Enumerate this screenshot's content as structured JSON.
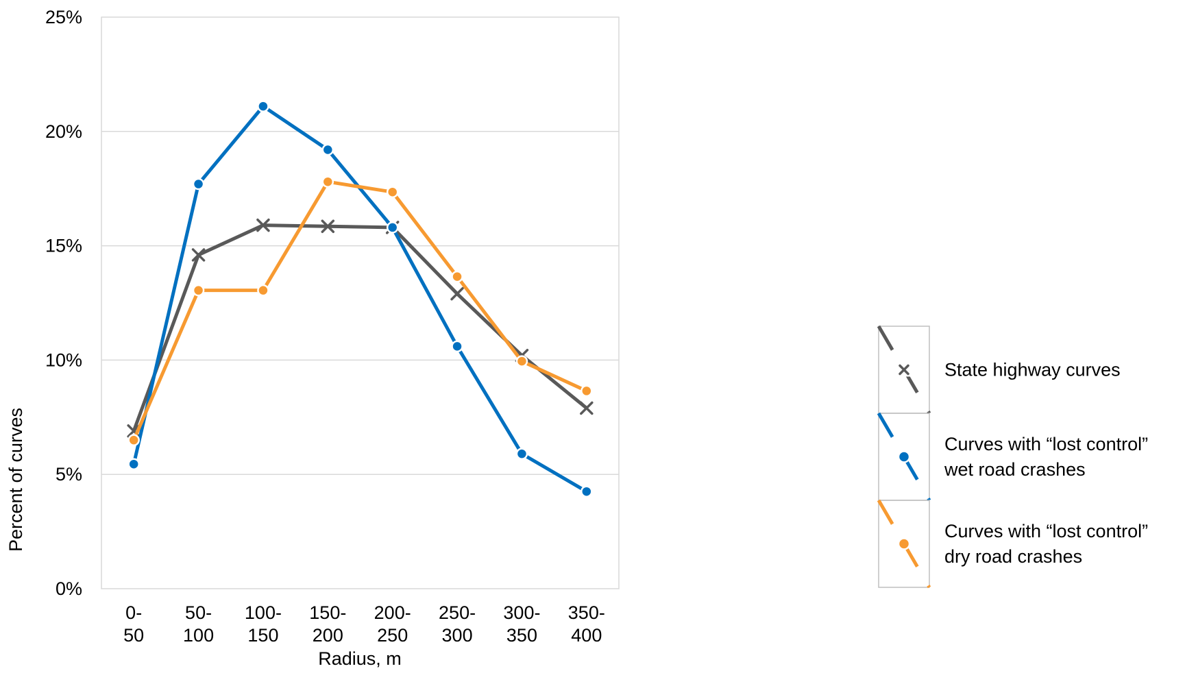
{
  "chart_data": {
    "type": "line",
    "xlabel": "Radius, m",
    "ylabel": "Percent of curves",
    "ylim": [
      0,
      25
    ],
    "yticks": [
      {
        "value": 0,
        "label": "0%"
      },
      {
        "value": 5,
        "label": "5%"
      },
      {
        "value": 10,
        "label": "10%"
      },
      {
        "value": 15,
        "label": "15%"
      },
      {
        "value": 20,
        "label": "20%"
      },
      {
        "value": 25,
        "label": "25%"
      }
    ],
    "categories": [
      {
        "line1": "0-",
        "line2": "50"
      },
      {
        "line1": "50-",
        "line2": "100"
      },
      {
        "line1": "100-",
        "line2": "150"
      },
      {
        "line1": "150-",
        "line2": "200"
      },
      {
        "line1": "200-",
        "line2": "250"
      },
      {
        "line1": "250-",
        "line2": "300"
      },
      {
        "line1": "300-",
        "line2": "350"
      },
      {
        "line1": "350-",
        "line2": "400"
      }
    ],
    "grid": true,
    "legend_position": "right",
    "series": [
      {
        "name": "State highway curves",
        "legend_lines": [
          "State highway curves"
        ],
        "color": "#595959",
        "marker": "x",
        "values": [
          6.9,
          14.6,
          15.9,
          15.85,
          15.8,
          12.9,
          10.2,
          7.9
        ]
      },
      {
        "name": "Curves with “lost control” wet road crashes",
        "legend_lines": [
          "Curves with “lost control”",
          "wet road crashes"
        ],
        "color": "#0070C0",
        "marker": "circle",
        "values": [
          5.45,
          17.7,
          21.1,
          19.2,
          15.8,
          10.6,
          5.9,
          4.25
        ]
      },
      {
        "name": "Curves with “lost control” dry road crashes",
        "legend_lines": [
          "Curves with “lost control”",
          "dry road crashes"
        ],
        "color": "#F79A31",
        "marker": "circle",
        "values": [
          6.5,
          13.05,
          13.05,
          17.8,
          17.35,
          13.65,
          9.95,
          8.65
        ]
      }
    ]
  }
}
